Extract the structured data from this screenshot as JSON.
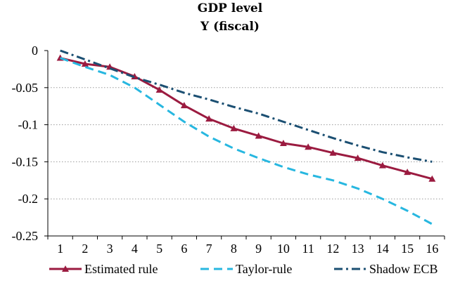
{
  "chart_data": {
    "type": "line",
    "title": "GDP level",
    "subtitle": "Y (fiscal)",
    "xlabel": "",
    "ylabel": "",
    "x": [
      1,
      2,
      3,
      4,
      5,
      6,
      7,
      8,
      9,
      10,
      11,
      12,
      13,
      14,
      15,
      16
    ],
    "xlim": [
      1,
      16
    ],
    "ylim": [
      -0.25,
      0
    ],
    "yticks": [
      0,
      -0.05,
      -0.1,
      -0.15,
      -0.2,
      -0.25
    ],
    "ytick_labels": [
      "0",
      "-0.05",
      "-0.1",
      "-0.15",
      "-0.2",
      "-0.25"
    ],
    "grid": true,
    "legend_position": "bottom",
    "series": [
      {
        "name": "Estimated rule",
        "color": "#9B1B40",
        "style": "solid-triangle",
        "values": [
          -0.01,
          -0.018,
          -0.022,
          -0.035,
          -0.053,
          -0.074,
          -0.092,
          -0.105,
          -0.115,
          -0.125,
          -0.13,
          -0.138,
          -0.145,
          -0.155,
          -0.164,
          -0.173
        ]
      },
      {
        "name": "Taylor-rule",
        "color": "#27B7E0",
        "style": "dashed",
        "values": [
          -0.01,
          -0.022,
          -0.033,
          -0.05,
          -0.073,
          -0.096,
          -0.116,
          -0.132,
          -0.145,
          -0.157,
          -0.167,
          -0.175,
          -0.186,
          -0.2,
          -0.216,
          -0.234
        ]
      },
      {
        "name": "Shadow ECB",
        "color": "#1B4F72",
        "style": "dash-dot",
        "values": [
          0.0,
          -0.012,
          -0.024,
          -0.036,
          -0.046,
          -0.057,
          -0.066,
          -0.076,
          -0.085,
          -0.096,
          -0.107,
          -0.118,
          -0.128,
          -0.137,
          -0.144,
          -0.15
        ]
      }
    ]
  }
}
